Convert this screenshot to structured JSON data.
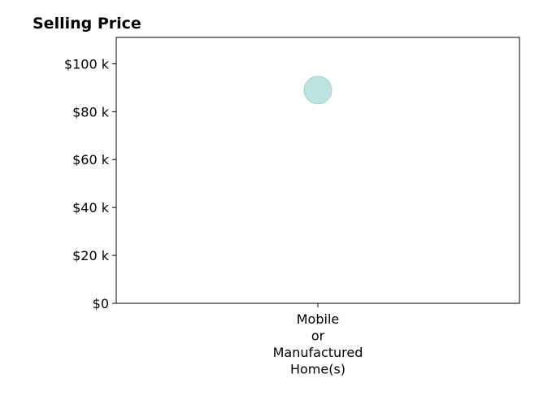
{
  "chart_data": {
    "type": "scatter",
    "title": "Selling Price",
    "xlabel": "",
    "ylabel": "",
    "categories": [
      "Mobile\nor\nManufactured\nHome(s)"
    ],
    "values": [
      89000
    ],
    "ylim": [
      0,
      111000
    ],
    "yticks": [
      0,
      20000,
      40000,
      60000,
      80000,
      100000
    ],
    "ytick_labels": [
      "$0",
      "$20 k",
      "$40 k",
      "$60 k",
      "$80 k",
      "$100 k"
    ],
    "grid": false,
    "legend": "none",
    "marker_color": "#7fc8c0",
    "marker_alpha": 0.5
  }
}
